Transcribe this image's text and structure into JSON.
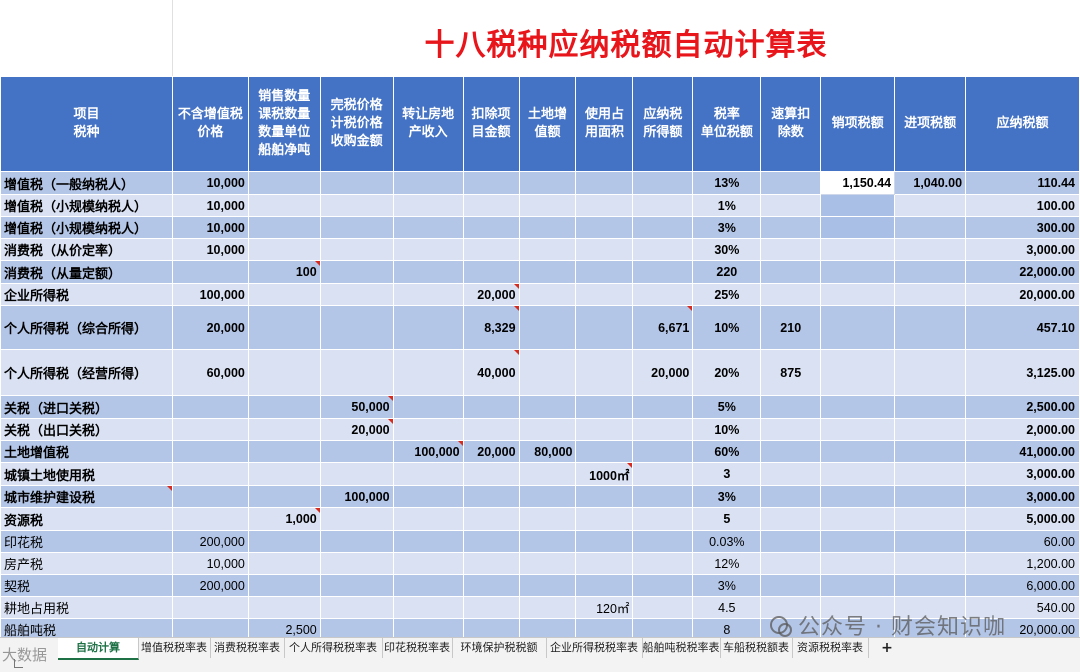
{
  "title": "十八税种应纳税额自动计算表",
  "columns": [
    "项目\n税种",
    "不含增值税\n价格",
    "销售数量\n课税数量\n数量单位\n船舶净吨",
    "完税价格\n计税价格\n收购金额",
    "转让房地\n产收入",
    "扣除项\n目金额",
    "土地增\n值额",
    "使用占\n用面积",
    "应纳税\n所得额",
    "税率\n单位税额",
    "速算扣\n除数",
    "销项税额",
    "进项税额",
    "应纳税额"
  ],
  "rows": [
    {
      "name": "增值税（一般纳税人）",
      "price": "10,000",
      "qty": "",
      "tax_base": "",
      "transfer": "",
      "deduct": "",
      "land_added": "",
      "area": "",
      "taxable": "",
      "rate": "13%",
      "quick": "",
      "output": "1,150.44",
      "input": "1,040.00",
      "payable": "110.44"
    },
    {
      "name": "增值税（小规模纳税人）",
      "price": "10,000",
      "qty": "",
      "tax_base": "",
      "transfer": "",
      "deduct": "",
      "land_added": "",
      "area": "",
      "taxable": "",
      "rate": "1%",
      "quick": "",
      "output": "",
      "input": "",
      "payable": "100.00"
    },
    {
      "name": "增值税（小规模纳税人）",
      "price": "10,000",
      "qty": "",
      "tax_base": "",
      "transfer": "",
      "deduct": "",
      "land_added": "",
      "area": "",
      "taxable": "",
      "rate": "3%",
      "quick": "",
      "output": "",
      "input": "",
      "payable": "300.00"
    },
    {
      "name": "消费税（从价定率）",
      "price": "10,000",
      "qty": "",
      "tax_base": "",
      "transfer": "",
      "deduct": "",
      "land_added": "",
      "area": "",
      "taxable": "",
      "rate": "30%",
      "quick": "",
      "output": "",
      "input": "",
      "payable": "3,000.00"
    },
    {
      "name": "消费税（从量定额）",
      "price": "",
      "qty": "100",
      "tax_base": "",
      "transfer": "",
      "deduct": "",
      "land_added": "",
      "area": "",
      "taxable": "",
      "rate": "220",
      "quick": "",
      "output": "",
      "input": "",
      "payable": "22,000.00"
    },
    {
      "name": "企业所得税",
      "price": "100,000",
      "qty": "",
      "tax_base": "",
      "transfer": "",
      "deduct": "20,000",
      "land_added": "",
      "area": "",
      "taxable": "",
      "rate": "25%",
      "quick": "",
      "output": "",
      "input": "",
      "payable": "20,000.00"
    },
    {
      "name": "个人所得税（综合所得）",
      "price": "20,000",
      "qty": "",
      "tax_base": "",
      "transfer": "",
      "deduct": "8,329",
      "land_added": "",
      "area": "",
      "taxable": "6,671",
      "rate": "10%",
      "quick": "210",
      "output": "",
      "input": "",
      "payable": "457.10"
    },
    {
      "name": "个人所得税（经营所得）",
      "price": "60,000",
      "qty": "",
      "tax_base": "",
      "transfer": "",
      "deduct": "40,000",
      "land_added": "",
      "area": "",
      "taxable": "20,000",
      "rate": "20%",
      "quick": "875",
      "output": "",
      "input": "",
      "payable": "3,125.00"
    },
    {
      "name": "关税（进口关税）",
      "price": "",
      "qty": "",
      "tax_base": "50,000",
      "transfer": "",
      "deduct": "",
      "land_added": "",
      "area": "",
      "taxable": "",
      "rate": "5%",
      "quick": "",
      "output": "",
      "input": "",
      "payable": "2,500.00"
    },
    {
      "name": "关税（出口关税）",
      "price": "",
      "qty": "",
      "tax_base": "20,000",
      "transfer": "",
      "deduct": "",
      "land_added": "",
      "area": "",
      "taxable": "",
      "rate": "10%",
      "quick": "",
      "output": "",
      "input": "",
      "payable": "2,000.00"
    },
    {
      "name": "土地增值税",
      "price": "",
      "qty": "",
      "tax_base": "",
      "transfer": "100,000",
      "deduct": "20,000",
      "land_added": "80,000",
      "area": "",
      "taxable": "",
      "rate": "60%",
      "quick": "",
      "output": "",
      "input": "",
      "payable": "41,000.00"
    },
    {
      "name": "城镇土地使用税",
      "price": "",
      "qty": "",
      "tax_base": "",
      "transfer": "",
      "deduct": "",
      "land_added": "",
      "area": "1000㎡",
      "taxable": "",
      "rate": "3",
      "quick": "",
      "output": "",
      "input": "",
      "payable": "3,000.00"
    },
    {
      "name": "城市维护建设税",
      "price": "",
      "qty": "",
      "tax_base": "100,000",
      "transfer": "",
      "deduct": "",
      "land_added": "",
      "area": "",
      "taxable": "",
      "rate": "3%",
      "quick": "",
      "output": "",
      "input": "",
      "payable": "3,000.00"
    },
    {
      "name": "资源税",
      "price": "",
      "qty": "1,000",
      "tax_base": "",
      "transfer": "",
      "deduct": "",
      "land_added": "",
      "area": "",
      "taxable": "",
      "rate": "5",
      "quick": "",
      "output": "",
      "input": "",
      "payable": "5,000.00"
    },
    {
      "name": "印花税",
      "price": "200,000",
      "qty": "",
      "tax_base": "",
      "transfer": "",
      "deduct": "",
      "land_added": "",
      "area": "",
      "taxable": "",
      "rate": "0.03%",
      "quick": "",
      "output": "",
      "input": "",
      "payable": "60.00"
    },
    {
      "name": "房产税",
      "price": "10,000",
      "qty": "",
      "tax_base": "",
      "transfer": "",
      "deduct": "",
      "land_added": "",
      "area": "",
      "taxable": "",
      "rate": "12%",
      "quick": "",
      "output": "",
      "input": "",
      "payable": "1,200.00"
    },
    {
      "name": "契税",
      "price": "200,000",
      "qty": "",
      "tax_base": "",
      "transfer": "",
      "deduct": "",
      "land_added": "",
      "area": "",
      "taxable": "",
      "rate": "3%",
      "quick": "",
      "output": "",
      "input": "",
      "payable": "6,000.00"
    },
    {
      "name": "耕地占用税",
      "price": "",
      "qty": "",
      "tax_base": "",
      "transfer": "",
      "deduct": "",
      "land_added": "",
      "area": "120㎡",
      "taxable": "",
      "rate": "4.5",
      "quick": "",
      "output": "",
      "input": "",
      "payable": "540.00"
    },
    {
      "name": "船舶吨税",
      "price": "",
      "qty": "2,500",
      "tax_base": "",
      "transfer": "",
      "deduct": "",
      "land_added": "",
      "area": "",
      "taxable": "",
      "rate": "8",
      "quick": "",
      "output": "",
      "input": "",
      "payable": "20,000.00"
    }
  ],
  "tabs": [
    "自动计算",
    "增值税税率表",
    "消费税税率表",
    "个人所得税税率表",
    "印花税税率表",
    "环境保护税税额",
    "企业所得税税率表",
    "船舶吨税税率表",
    "车船税税额表",
    "资源税税率表"
  ],
  "add_tab": "+",
  "watermark": {
    "right": "公众号 · 财会知识咖",
    "left": "大数据"
  },
  "colors": {
    "header": "#4472c4",
    "row_dark": "#b4c6e7",
    "row_light": "#d9e1f2",
    "title": "#e8151b",
    "active_tab": "#1e7145"
  }
}
